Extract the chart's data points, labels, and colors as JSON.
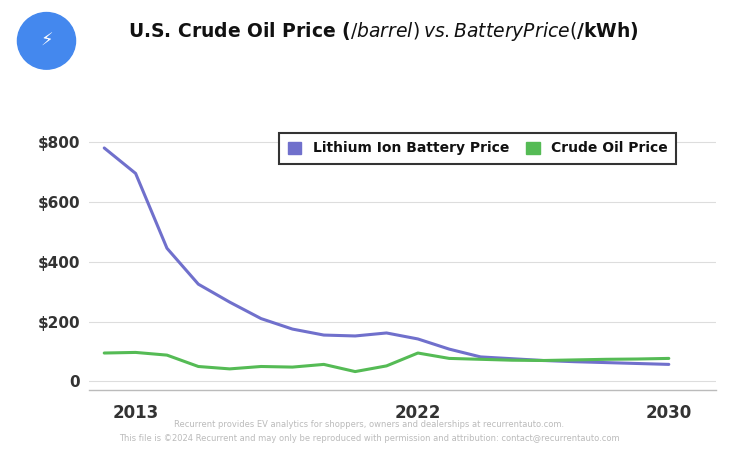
{
  "title": "U.S. Crude Oil Price ($/barrel) vs. Battery Price ($/kWh)",
  "background_color": "#ffffff",
  "plot_bg_color": "#ffffff",
  "battery_years": [
    2012,
    2013,
    2014,
    2015,
    2016,
    2017,
    2018,
    2019,
    2020,
    2021,
    2022,
    2023,
    2024,
    2025,
    2026,
    2027,
    2028,
    2029,
    2030
  ],
  "battery_values": [
    780,
    695,
    445,
    325,
    265,
    210,
    175,
    155,
    152,
    162,
    142,
    108,
    82,
    76,
    70,
    66,
    63,
    60,
    57
  ],
  "oil_years": [
    2012,
    2013,
    2014,
    2015,
    2016,
    2017,
    2018,
    2019,
    2020,
    2021,
    2022,
    2023,
    2024,
    2025,
    2026,
    2027,
    2028,
    2029,
    2030
  ],
  "oil_values": [
    95,
    97,
    88,
    50,
    42,
    50,
    48,
    57,
    33,
    52,
    95,
    77,
    74,
    71,
    70,
    72,
    74,
    75,
    77
  ],
  "battery_color": "#7070cc",
  "oil_color": "#55bb55",
  "yticks": [
    0,
    200,
    400,
    600,
    800
  ],
  "ytick_labels": [
    "0",
    "$200",
    "$400",
    "$600",
    "$800"
  ],
  "xticks": [
    2013,
    2022,
    2030
  ],
  "ylim": [
    -30,
    880
  ],
  "xlim": [
    2011.5,
    2031.5
  ],
  "legend_battery_label": "Lithium Ion Battery Price",
  "legend_oil_label": "Crude Oil Price",
  "footer_line1": "Recurrent provides EV analytics for shoppers, owners and dealerships at recurrentauto.com.",
  "footer_line2": "This file is ©2024 Recurrent and may only be reproduced with permission and attribution: contact@recurrentauto.com",
  "line_width": 2.2,
  "grid_color": "#dddddd",
  "icon_color": "#4488ee"
}
